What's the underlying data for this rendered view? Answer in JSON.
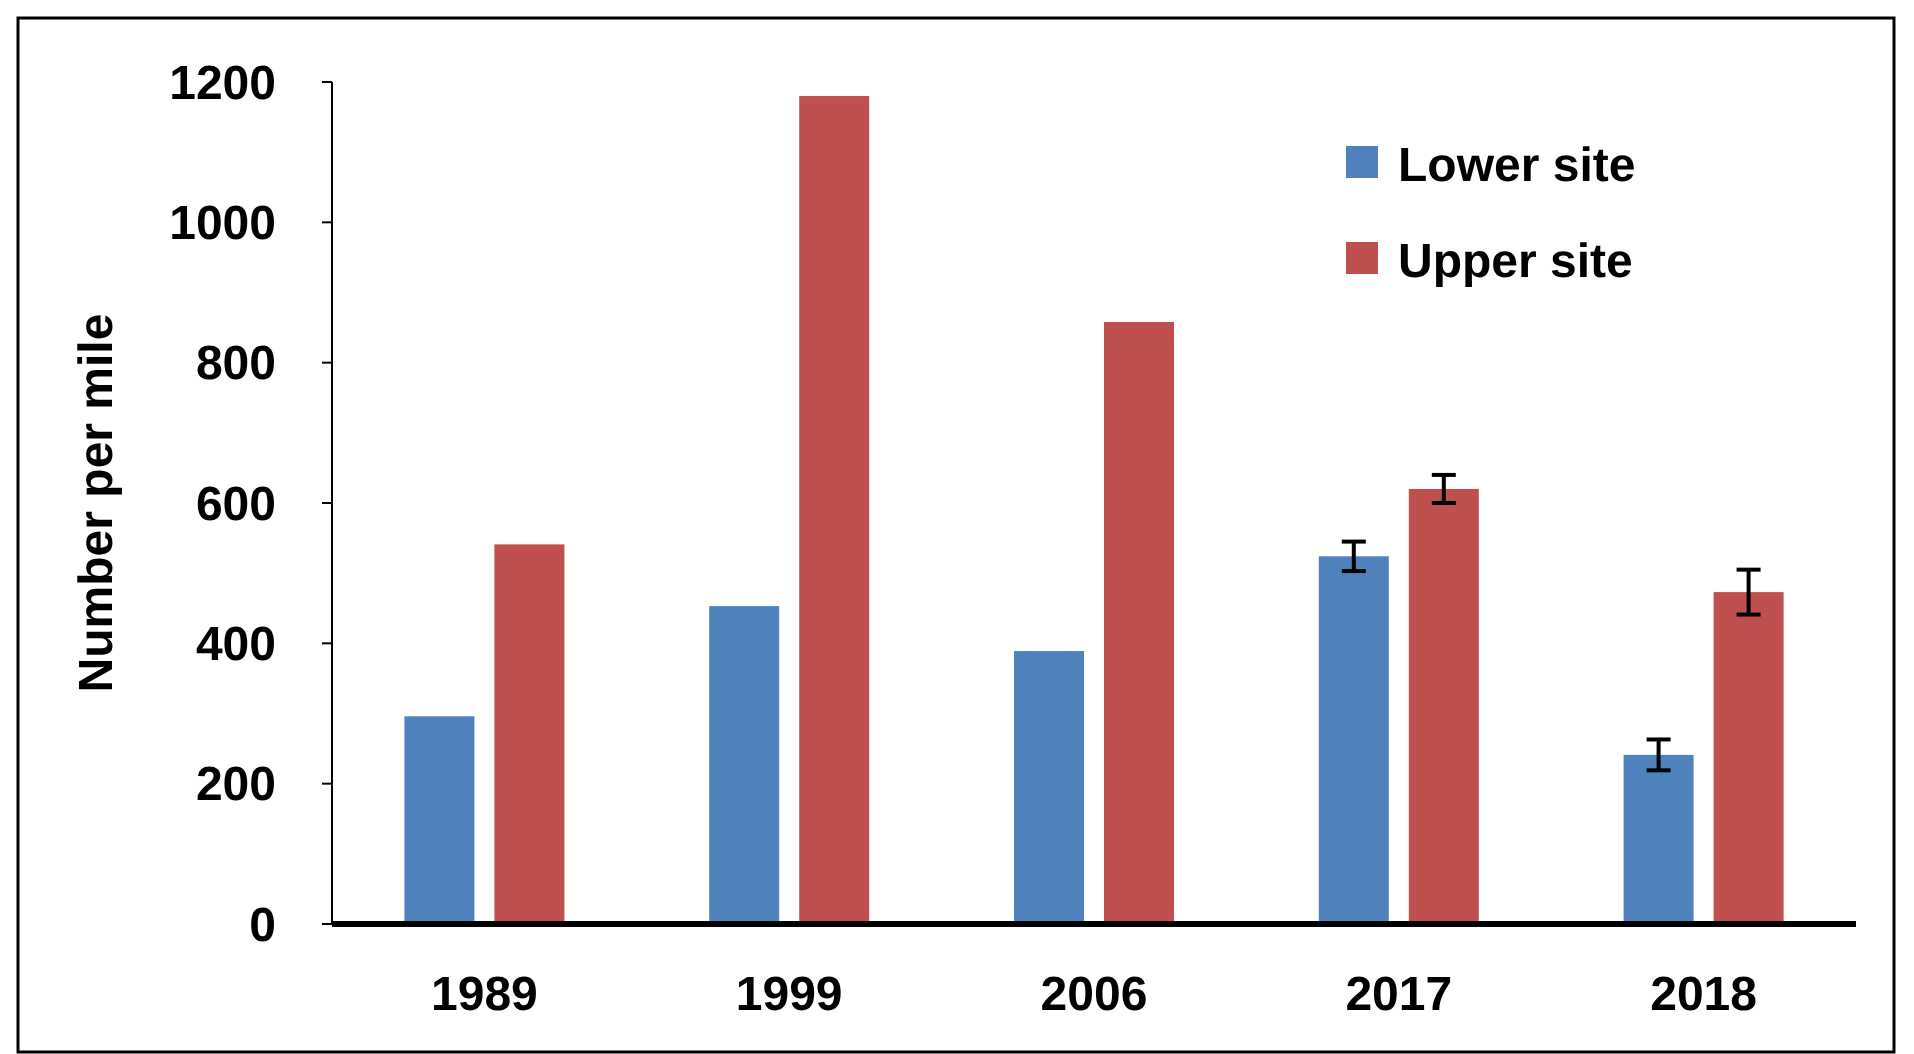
{
  "chart_data": {
    "type": "bar",
    "ylabel": "Number per mile",
    "categories": [
      "1989",
      "1999",
      "2006",
      "2017",
      "2018"
    ],
    "series": [
      {
        "name": "Lower site",
        "color": "#4f81bd",
        "values": [
          296,
          453,
          389,
          524,
          241
        ],
        "errors": [
          null,
          null,
          null,
          21,
          22
        ]
      },
      {
        "name": "Upper site",
        "color": "#c0504d",
        "values": [
          541,
          1180,
          858,
          620,
          473
        ],
        "errors": [
          null,
          null,
          null,
          20,
          32
        ]
      }
    ],
    "ylim": [
      0,
      1200
    ],
    "yticks": [
      0,
      200,
      400,
      600,
      800,
      1000,
      1200
    ],
    "grid": false,
    "legend": "top right"
  }
}
